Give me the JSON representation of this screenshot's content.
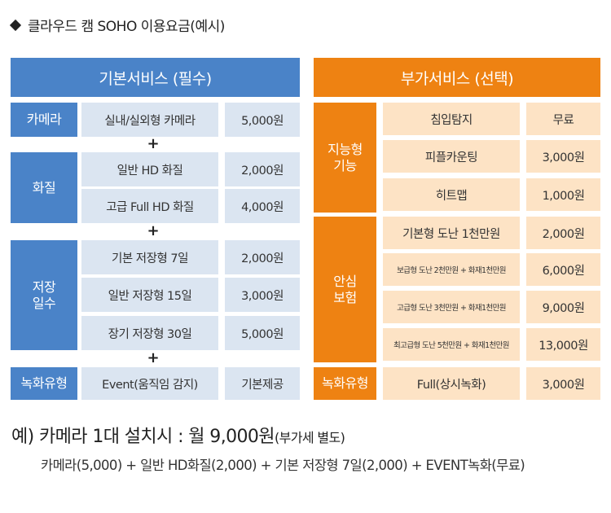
{
  "title": "클라우드 캠 SOHO 이용요금(예시)",
  "basic": {
    "header": "기본서비스 (필수)",
    "plus": "+",
    "camera": {
      "label": "카메라",
      "items": [
        {
          "name": "실내/실외형 카메라",
          "price": "5,000원"
        }
      ]
    },
    "quality": {
      "label": "화질",
      "items": [
        {
          "name": "일반 HD 화질",
          "price": "2,000원"
        },
        {
          "name": "고급 Full HD 화질",
          "price": "4,000원"
        }
      ]
    },
    "storage": {
      "label": "저장\n일수",
      "items": [
        {
          "name": "기본 저장형 7일",
          "price": "2,000원"
        },
        {
          "name": "일반 저장형 15일",
          "price": "3,000원"
        },
        {
          "name": "장기 저장형 30일",
          "price": "5,000원"
        }
      ]
    },
    "recording": {
      "label": "녹화유형",
      "items": [
        {
          "name": "Event(움직임 감지)",
          "price": "기본제공"
        }
      ]
    }
  },
  "addon": {
    "header": "부가서비스 (선택)",
    "intelligent": {
      "label": "지능형\n기능",
      "items": [
        {
          "name": "침입탐지",
          "price": "무료"
        },
        {
          "name": "피플카운팅",
          "price": "3,000원"
        },
        {
          "name": "히트맵",
          "price": "1,000원"
        }
      ]
    },
    "insurance": {
      "label": "안심\n보험",
      "items": [
        {
          "name": "기본형 도난 1천만원",
          "price": "2,000원"
        },
        {
          "name": "보급형 도난 2천만원 + 화재1천만원",
          "price": "6,000원"
        },
        {
          "name": "고급형 도난 3천만원 + 화재1천만원",
          "price": "9,000원"
        },
        {
          "name": "최고급형 도난 5천만원 + 화재1천만원",
          "price": "13,000원"
        }
      ]
    },
    "recording": {
      "label": "녹화유형",
      "items": [
        {
          "name": "Full(상시녹화)",
          "price": "3,000원"
        }
      ]
    }
  },
  "example": {
    "main": "예) 카메라 1대 설치시 : 월 9,000원",
    "note": "(부가세 별도)",
    "formula": "카메라(5,000) + 일반 HD화질(2,000) + 기본 저장형 7일(2,000) + EVENT녹화(무료)"
  },
  "colors": {
    "blue": "#4a83c8",
    "light_blue": "#dbe5f1",
    "orange": "#ee8212",
    "light_orange": "#fde3c5"
  }
}
